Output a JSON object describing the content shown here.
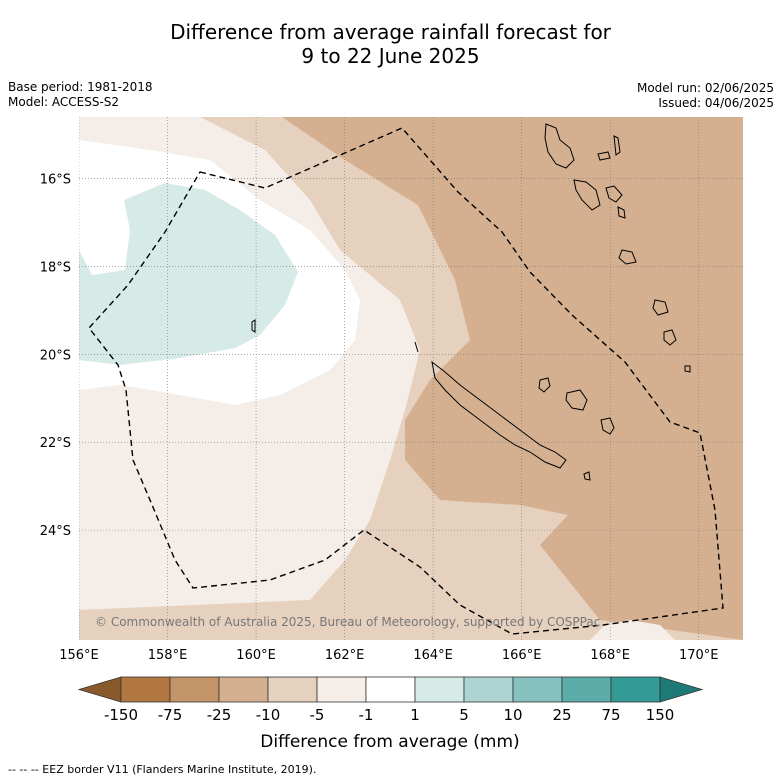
{
  "title": {
    "line1": "Difference from average rainfall forecast for",
    "line2": "9 to 22 June 2025"
  },
  "meta_left": {
    "base_period": "Base period: 1981-2018",
    "model": "Model: ACCESS-S2"
  },
  "meta_right": {
    "model_run": "Model run: 02/06/2025",
    "issued": "Issued: 04/06/2025"
  },
  "map": {
    "lon_range": [
      156,
      171
    ],
    "lat_range": [
      -26.5,
      -14.6
    ],
    "lon_ticks": [
      "156°E",
      "158°E",
      "160°E",
      "162°E",
      "164°E",
      "166°E",
      "168°E",
      "170°E"
    ],
    "lat_ticks": [
      "16°S",
      "18°S",
      "20°S",
      "22°S",
      "24°S"
    ],
    "copyright": "© Commonwealth of Australia 2025, Bureau of Meteorology, supported by COSPPac"
  },
  "colorbar": {
    "labels": [
      "-150",
      "-75",
      "-25",
      "-10",
      "-5",
      "-1",
      "1",
      "5",
      "10",
      "25",
      "75",
      "150"
    ],
    "colors": [
      "#8b5a2b",
      "#b07840",
      "#c29468",
      "#d4b090",
      "#e6d1bf",
      "#f5ede7",
      "#ffffff",
      "#d6eae8",
      "#aed4d2",
      "#86c2bf",
      "#5caca9",
      "#339a96",
      "#1e7a76"
    ],
    "label": "Difference from average (mm)"
  },
  "footer": {
    "eez_note": "--  --  -- EEZ border V11 (Flanders Marine Institute, 2019)."
  }
}
